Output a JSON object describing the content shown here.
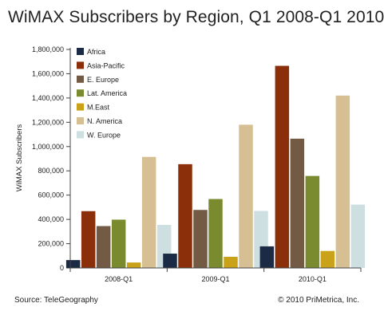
{
  "footer": {
    "source": "Source: TeleGeography",
    "copyright": "© 2010 PriMetrica, Inc."
  },
  "chart_data": {
    "type": "bar",
    "title": "WiMAX Subscribers by Region, Q1 2008-Q1 2010",
    "xlabel": "",
    "ylabel": "WiMAX Subscribers",
    "ylim": [
      0,
      1800000
    ],
    "yticks": [
      0,
      200000,
      400000,
      600000,
      800000,
      1000000,
      1200000,
      1400000,
      1600000,
      1800000
    ],
    "ytick_labels": [
      "0",
      "200,000",
      "400,000",
      "600,000",
      "800,000",
      "1,000,000",
      "1,200,000",
      "1,400,000",
      "1,600,000",
      "1,800,000"
    ],
    "grid": false,
    "legend_position": "top-left",
    "categories": [
      "2008-Q1",
      "2009-Q1",
      "2010-Q1"
    ],
    "series": [
      {
        "name": "Africa",
        "color": "#1c2b45",
        "values": [
          65000,
          118000,
          178000
        ]
      },
      {
        "name": "Asia-Pacific",
        "color": "#8a2f0a",
        "values": [
          468000,
          855000,
          1665000
        ]
      },
      {
        "name": "E. Europe",
        "color": "#725a44",
        "values": [
          345000,
          478000,
          1065000
        ]
      },
      {
        "name": "Lat. America",
        "color": "#7a8a2e",
        "values": [
          398000,
          568000,
          758000
        ]
      },
      {
        "name": "M.East",
        "color": "#c9a21a",
        "values": [
          45000,
          92000,
          140000
        ]
      },
      {
        "name": "N. America",
        "color": "#d6bf93",
        "values": [
          915000,
          1180000,
          1420000
        ]
      },
      {
        "name": "W. Europe",
        "color": "#cddfe1",
        "values": [
          355000,
          470000,
          522000
        ]
      }
    ]
  }
}
